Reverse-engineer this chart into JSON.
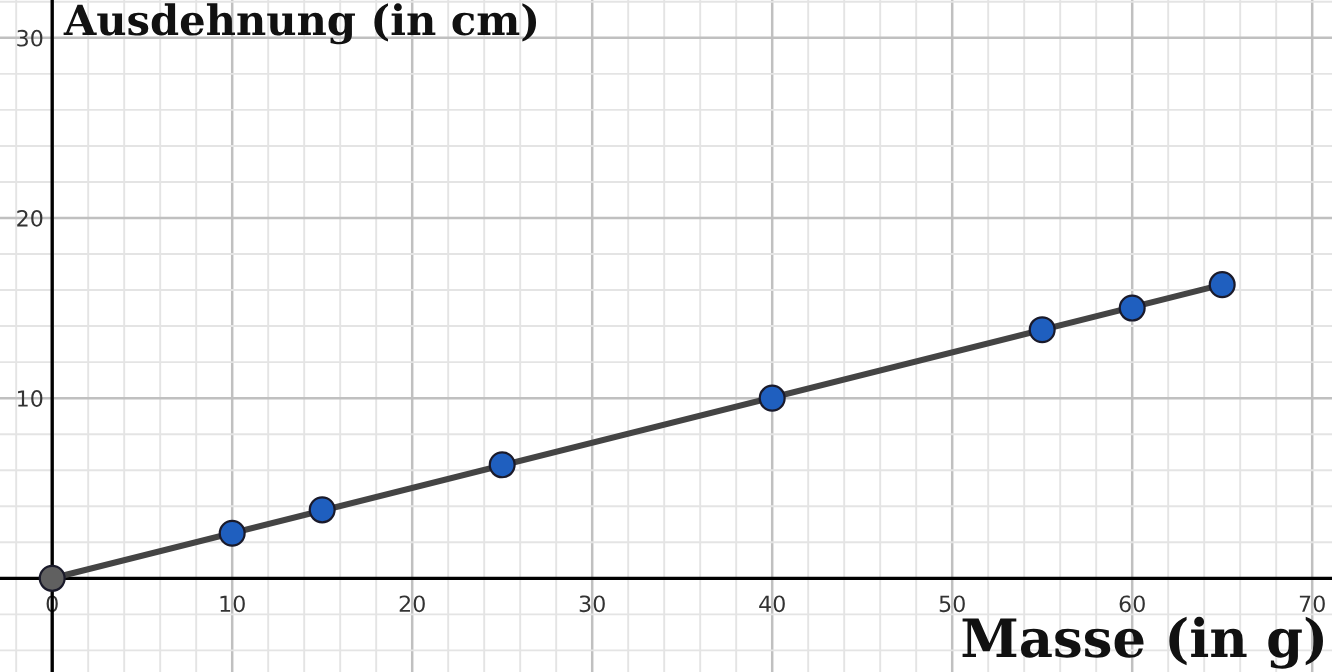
{
  "chart_data": {
    "type": "scatter",
    "xlabel": "Masse (in g)",
    "ylabel": "Ausdehnung (in cm)",
    "xlim": [
      -2.9,
      71.1
    ],
    "ylim": [
      -5.2,
      32.1
    ],
    "xticks": [
      0,
      10,
      20,
      30,
      40,
      50,
      60,
      70
    ],
    "yticks": [
      10,
      20,
      30
    ],
    "grid": true,
    "series": [
      {
        "type": "line",
        "color": "#444444",
        "x": [
          0,
          65
        ],
        "values": [
          0,
          16.3
        ],
        "marker": "none"
      },
      {
        "color": "#606060",
        "x": [
          0
        ],
        "values": [
          0
        ],
        "marker": "circle"
      },
      {
        "color": "#1f5fbf",
        "x": [
          10,
          15,
          25,
          40,
          55,
          60,
          65
        ],
        "values": [
          2.5,
          3.8,
          6.3,
          10,
          13.8,
          15,
          16.3
        ],
        "marker": "circle"
      }
    ]
  }
}
